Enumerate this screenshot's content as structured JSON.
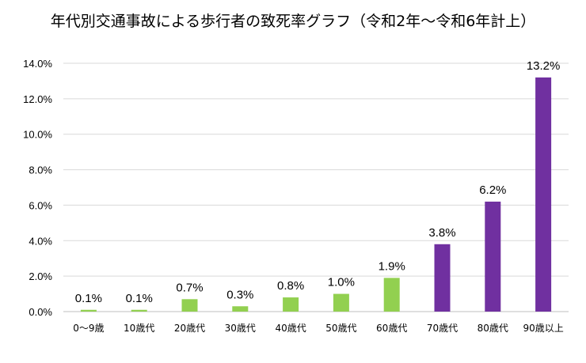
{
  "chart_data": {
    "type": "bar",
    "title": "年代別交通事故による歩行者の致死率グラフ（令和2年～令和6年計上）",
    "categories": [
      "0～9歳",
      "10歳代",
      "20歳代",
      "30歳代",
      "40歳代",
      "50歳代",
      "60歳代",
      "70歳代",
      "80歳代",
      "90歳以上"
    ],
    "values": [
      0.1,
      0.1,
      0.7,
      0.3,
      0.8,
      1.0,
      1.9,
      3.8,
      6.2,
      13.2
    ],
    "data_labels": [
      "0.1%",
      "0.1%",
      "0.7%",
      "0.3%",
      "0.8%",
      "1.0%",
      "1.9%",
      "3.8%",
      "6.2%",
      "13.2%"
    ],
    "ylim": [
      0,
      14
    ],
    "yticks": [
      0,
      2,
      4,
      6,
      8,
      10,
      12,
      14
    ],
    "ytick_labels": [
      "0.0%",
      "2.0%",
      "4.0%",
      "6.0%",
      "8.0%",
      "10.0%",
      "12.0%",
      "14.0%"
    ],
    "grid": true,
    "colors": {
      "low": "#92D050",
      "high": "#7030A0",
      "grid": "#D9D9D9",
      "axis": "#BFBFBF"
    },
    "high_from_index": 7
  }
}
